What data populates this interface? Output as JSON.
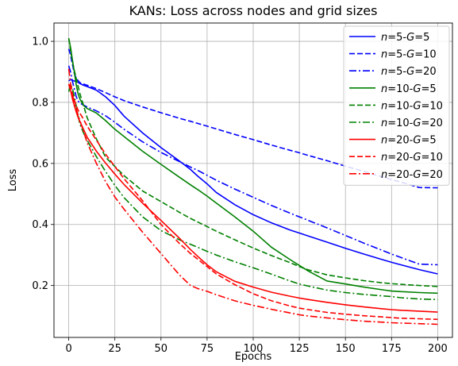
{
  "chart_data": {
    "type": "line",
    "title": "KANs: Loss across nodes and grid sizes",
    "xlabel": "Epochs",
    "ylabel": "Loss",
    "xlim": [
      -8,
      208
    ],
    "ylim": [
      0.03,
      1.06
    ],
    "xticks": [
      0,
      25,
      50,
      75,
      100,
      125,
      150,
      175,
      200
    ],
    "yticks": [
      0.2,
      0.4,
      0.6,
      0.8,
      1.0
    ],
    "xtick_labels": [
      "0",
      "25",
      "50",
      "75",
      "100",
      "125",
      "150",
      "175",
      "200"
    ],
    "ytick_labels": [
      "0.2",
      "0.4",
      "0.6",
      "0.8",
      "1.0"
    ],
    "grid": true,
    "legend_position": "top-right",
    "x": [
      0,
      1,
      2,
      3,
      4,
      5,
      6,
      8,
      10,
      15,
      20,
      25,
      30,
      40,
      50,
      60,
      66,
      70,
      75,
      80,
      90,
      100,
      110,
      120,
      125,
      130,
      140,
      150,
      160,
      170,
      175,
      180,
      190,
      200
    ],
    "series": [
      {
        "name": "n=5-G=5",
        "name_parts": {
          "n": "5",
          "G": "5"
        },
        "color": "#0000ff",
        "dash": "solid",
        "values": [
          0.87,
          0.875,
          0.872,
          0.87,
          0.868,
          0.866,
          0.862,
          0.856,
          0.852,
          0.84,
          0.818,
          0.79,
          0.755,
          0.7,
          0.652,
          0.608,
          0.58,
          0.558,
          0.533,
          0.505,
          0.465,
          0.432,
          0.405,
          0.382,
          0.372,
          0.362,
          0.342,
          0.322,
          0.303,
          0.285,
          0.276,
          0.268,
          0.252,
          0.238
        ]
      },
      {
        "name": "n=5-G=10",
        "name_parts": {
          "n": "5",
          "G": "10"
        },
        "color": "#0000ff",
        "dash": "dashed",
        "values": [
          0.975,
          0.955,
          0.925,
          0.895,
          0.88,
          0.872,
          0.865,
          0.86,
          0.856,
          0.845,
          0.832,
          0.818,
          0.806,
          0.785,
          0.766,
          0.748,
          0.738,
          0.731,
          0.722,
          0.713,
          0.695,
          0.678,
          0.66,
          0.643,
          0.635,
          0.626,
          0.609,
          0.591,
          0.574,
          0.556,
          0.547,
          0.539,
          0.521,
          0.52
        ]
      },
      {
        "name": "n=5-G=20",
        "name_parts": {
          "n": "5",
          "G": "20"
        },
        "color": "#0000ff",
        "dash": "dashdot",
        "values": [
          0.92,
          0.9,
          0.87,
          0.845,
          0.82,
          0.805,
          0.798,
          0.791,
          0.785,
          0.772,
          0.756,
          0.735,
          0.712,
          0.671,
          0.636,
          0.606,
          0.588,
          0.577,
          0.561,
          0.545,
          0.516,
          0.489,
          0.462,
          0.437,
          0.425,
          0.413,
          0.389,
          0.364,
          0.339,
          0.315,
          0.303,
          0.292,
          0.27,
          0.268
        ]
      },
      {
        "name": "n=10-G=5",
        "name_parts": {
          "n": "10",
          "G": "5"
        },
        "color": "#008000",
        "dash": "solid",
        "values": [
          1.01,
          0.98,
          0.94,
          0.9,
          0.86,
          0.83,
          0.812,
          0.79,
          0.78,
          0.765,
          0.74,
          0.712,
          0.688,
          0.64,
          0.597,
          0.555,
          0.53,
          0.514,
          0.493,
          0.47,
          0.425,
          0.378,
          0.325,
          0.285,
          0.266,
          0.247,
          0.215,
          0.205,
          0.195,
          0.186,
          0.182,
          0.18,
          0.177,
          0.175
        ]
      },
      {
        "name": "n=10-G=10",
        "name_parts": {
          "n": "10",
          "G": "10"
        },
        "color": "#008000",
        "dash": "dashed",
        "values": [
          1.01,
          0.97,
          0.935,
          0.905,
          0.88,
          0.855,
          0.83,
          0.79,
          0.75,
          0.68,
          0.62,
          0.59,
          0.56,
          0.51,
          0.475,
          0.44,
          0.42,
          0.408,
          0.393,
          0.378,
          0.35,
          0.323,
          0.298,
          0.275,
          0.262,
          0.251,
          0.235,
          0.225,
          0.216,
          0.209,
          0.206,
          0.204,
          0.2,
          0.197
        ]
      },
      {
        "name": "n=10-G=20",
        "name_parts": {
          "n": "10",
          "G": "20"
        },
        "color": "#008000",
        "dash": "dashdot",
        "values": [
          0.835,
          0.86,
          0.846,
          0.82,
          0.79,
          0.76,
          0.73,
          0.7,
          0.676,
          0.622,
          0.573,
          0.528,
          0.488,
          0.425,
          0.38,
          0.35,
          0.335,
          0.325,
          0.312,
          0.3,
          0.278,
          0.258,
          0.237,
          0.215,
          0.205,
          0.198,
          0.185,
          0.177,
          0.171,
          0.166,
          0.164,
          0.16,
          0.156,
          0.154
        ]
      },
      {
        "name": "n=20-G=5",
        "name_parts": {
          "n": "20",
          "G": "5"
        },
        "color": "#ff0000",
        "dash": "solid",
        "values": [
          0.86,
          0.84,
          0.812,
          0.79,
          0.77,
          0.752,
          0.738,
          0.712,
          0.686,
          0.64,
          0.601,
          0.565,
          0.531,
          0.47,
          0.413,
          0.355,
          0.318,
          0.295,
          0.268,
          0.245,
          0.214,
          0.195,
          0.178,
          0.165,
          0.159,
          0.154,
          0.145,
          0.137,
          0.13,
          0.124,
          0.121,
          0.119,
          0.116,
          0.113
        ]
      },
      {
        "name": "n=20-G=10",
        "name_parts": {
          "n": "20",
          "G": "10"
        },
        "color": "#ff0000",
        "dash": "dashed",
        "values": [
          0.86,
          0.848,
          0.828,
          0.808,
          0.79,
          0.776,
          0.765,
          0.745,
          0.722,
          0.676,
          0.63,
          0.59,
          0.55,
          0.478,
          0.4,
          0.338,
          0.305,
          0.286,
          0.262,
          0.238,
          0.203,
          0.173,
          0.15,
          0.133,
          0.126,
          0.121,
          0.112,
          0.106,
          0.101,
          0.097,
          0.095,
          0.093,
          0.091,
          0.089
        ]
      },
      {
        "name": "n=20-G=20",
        "name_parts": {
          "n": "20",
          "G": "20"
        },
        "color": "#ff0000",
        "dash": "dashdot",
        "values": [
          0.91,
          0.862,
          0.828,
          0.8,
          0.78,
          0.76,
          0.742,
          0.705,
          0.668,
          0.6,
          0.54,
          0.49,
          0.45,
          0.375,
          0.305,
          0.235,
          0.2,
          0.19,
          0.181,
          0.17,
          0.15,
          0.135,
          0.122,
          0.11,
          0.104,
          0.1,
          0.094,
          0.088,
          0.083,
          0.08,
          0.078,
          0.077,
          0.075,
          0.073
        ]
      }
    ]
  }
}
